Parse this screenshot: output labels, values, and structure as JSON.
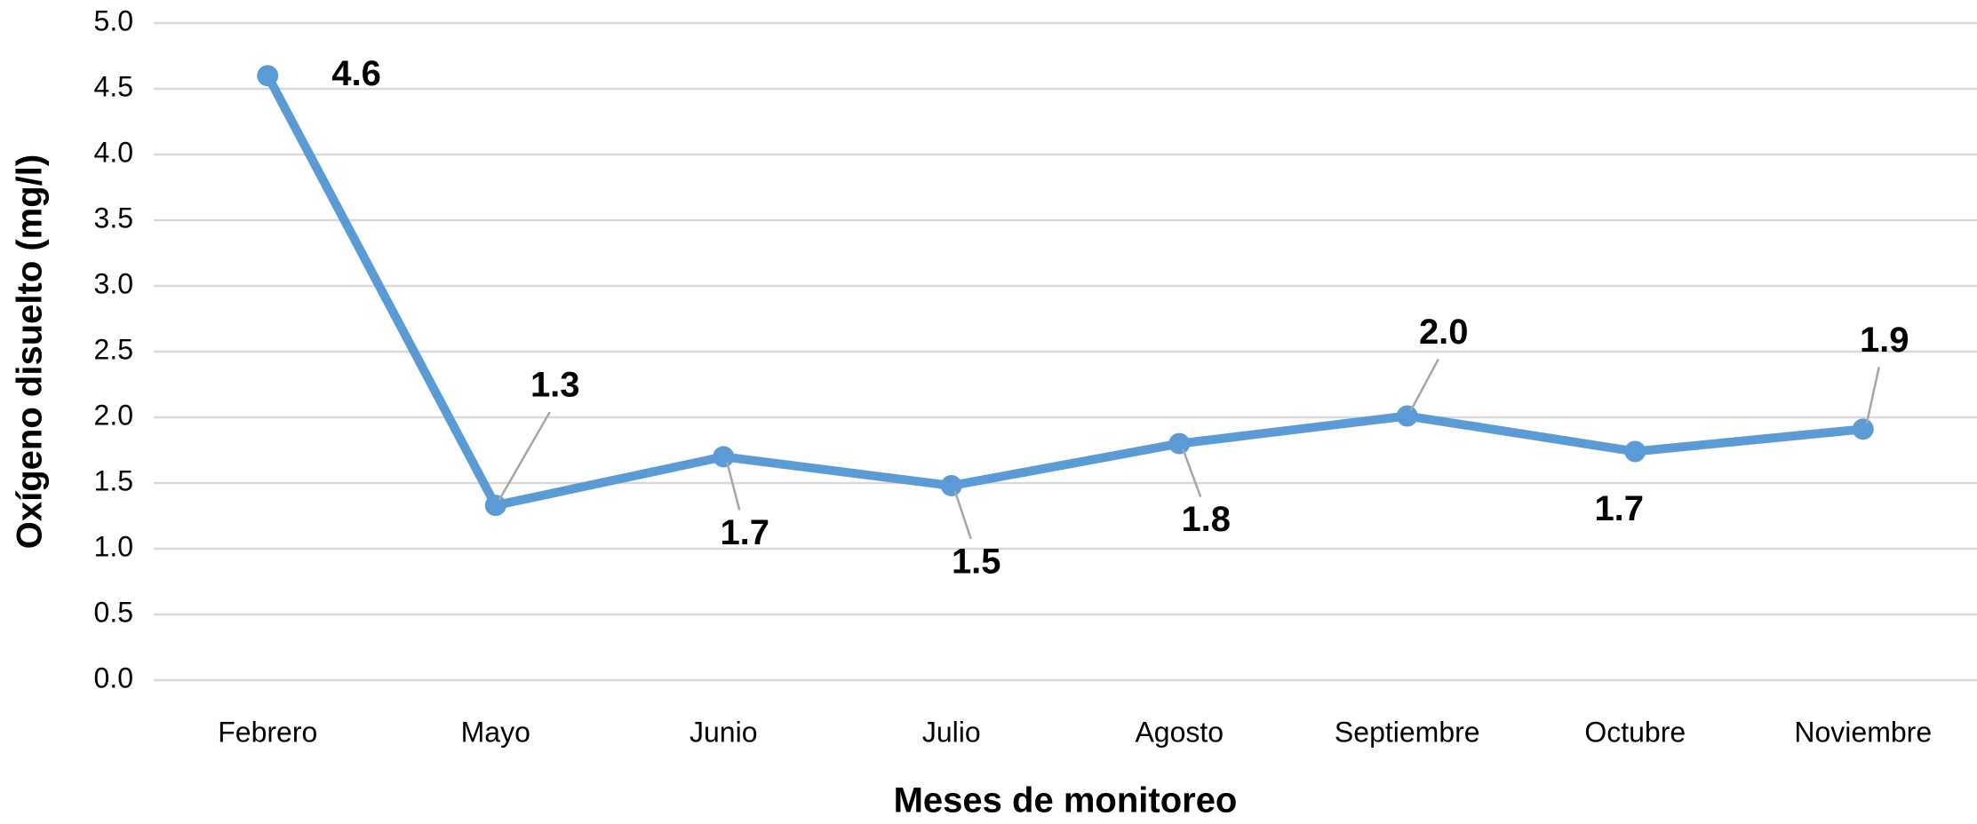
{
  "chart_data": {
    "type": "line",
    "x_label": "Meses de monitoreo",
    "y_label": "Oxígeno disuelto  (mg/l)",
    "categories": [
      "Febrero",
      "Mayo",
      "Junio",
      "Julio",
      "Agosto",
      "Septiembre",
      "Octubre",
      "Noviembre"
    ],
    "series": [
      {
        "name": "Oxígeno disuelto",
        "color": "#5b9bd5",
        "values": [
          4.6,
          1.33,
          1.7,
          1.48,
          1.8,
          2.01,
          1.74,
          1.91
        ],
        "value_labels": [
          "4.6",
          "1.3",
          "1.7",
          "1.5",
          "1.8",
          "2.0",
          "1.7",
          "1.9"
        ]
      }
    ],
    "ylim": [
      0,
      5
    ],
    "yticks": [
      {
        "value": 0,
        "label": "0.0"
      },
      0.5,
      {
        "value": 1,
        "label": "1.0"
      },
      1.5,
      {
        "value": 2,
        "label": "2.0"
      },
      2.5,
      {
        "value": 3,
        "label": "3.0"
      },
      3.5,
      {
        "value": 4,
        "label": "4.0"
      },
      4.5,
      {
        "value": 5,
        "label": "5.0"
      }
    ],
    "grid": true
  }
}
